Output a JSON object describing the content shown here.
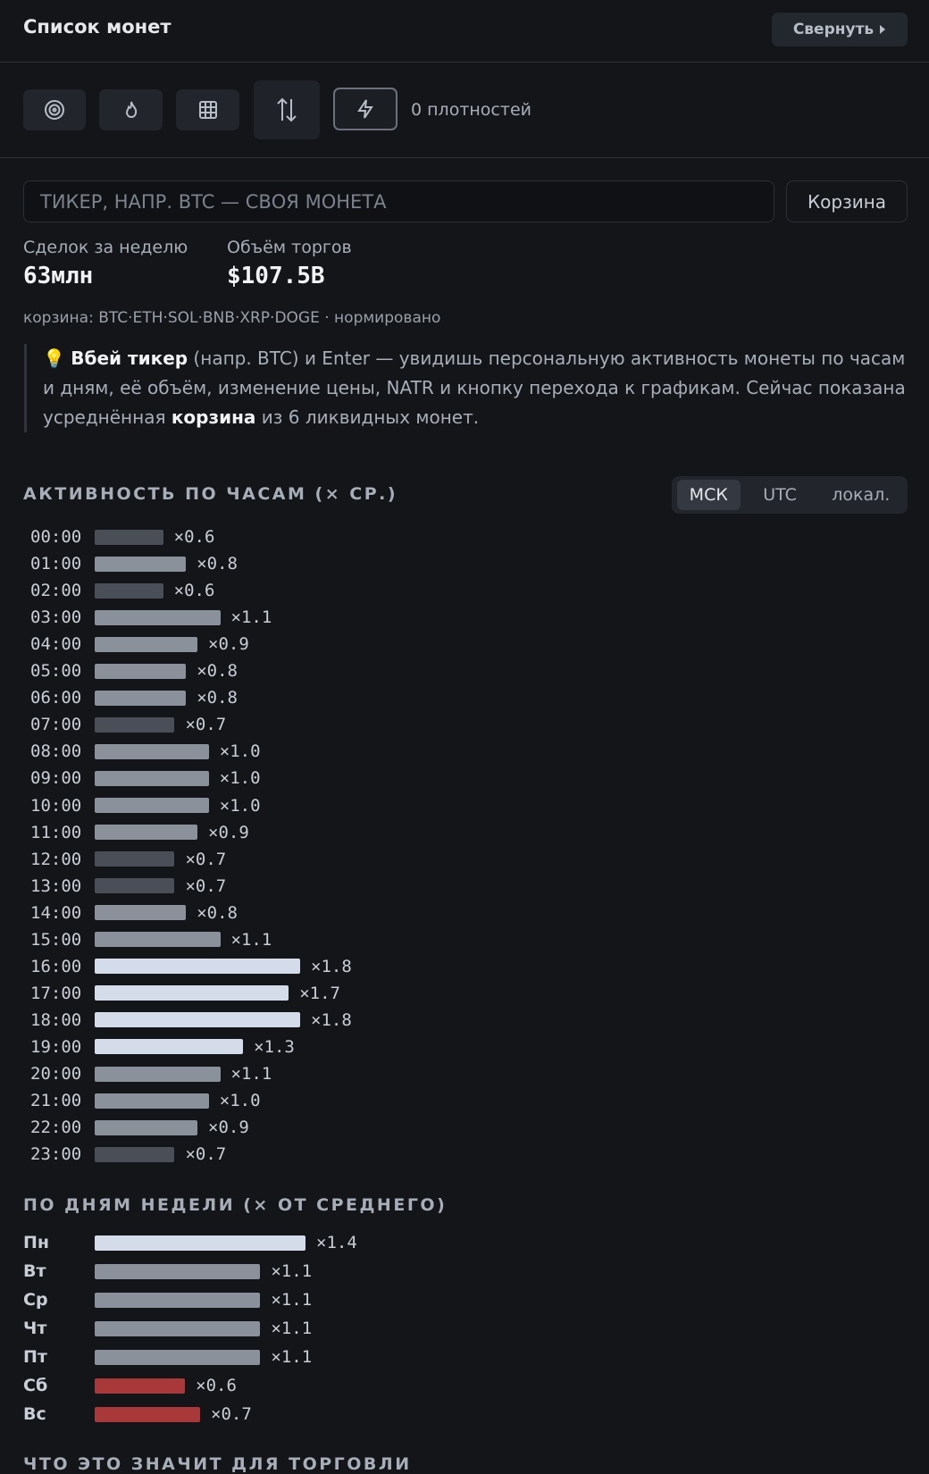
{
  "header": {
    "title": "Список монет",
    "collapse_button": "Свернуть"
  },
  "toolbar": {
    "density_count": "0 плотностей"
  },
  "search": {
    "placeholder": "ТИКЕР, НАПР. BTC — СВОЯ МОНЕТА",
    "basket_button": "Корзина"
  },
  "stats": [
    {
      "label": "Сделок за неделю",
      "value": "63млн"
    },
    {
      "label": "Объём торгов",
      "value": "$107.5B"
    }
  ],
  "basket_info": "корзина: BTC·ETH·SOL·BNB·XRP·DOGE · нормировано",
  "note": {
    "icon": "💡",
    "parts": [
      {
        "text": "Вбей тикер",
        "bold": true
      },
      {
        "text": " (напр. BTC) и Enter — увидишь персональную активность монеты по часам и дням, её объём, изменение цены, NATR и кнопку перехода к графикам. Сейчас показана усреднённая ",
        "bold": false
      },
      {
        "text": "корзина",
        "bold": true
      },
      {
        "text": " из 6 ликвидных монет.",
        "bold": false
      }
    ]
  },
  "hourly": {
    "title": "АКТИВНОСТЬ ПО ЧАСАМ (× СР.)",
    "timezones": [
      "МСК",
      "UTC",
      "локал."
    ],
    "active_timezone": 0,
    "rows": [
      {
        "label": "00:00",
        "value": 0.6,
        "value_label": "×0.6",
        "color": "#4a4f57"
      },
      {
        "label": "01:00",
        "value": 0.8,
        "value_label": "×0.8",
        "color": "#8a919b"
      },
      {
        "label": "02:00",
        "value": 0.6,
        "value_label": "×0.6",
        "color": "#4a4f57"
      },
      {
        "label": "03:00",
        "value": 1.1,
        "value_label": "×1.1",
        "color": "#8a919b"
      },
      {
        "label": "04:00",
        "value": 0.9,
        "value_label": "×0.9",
        "color": "#8a919b"
      },
      {
        "label": "05:00",
        "value": 0.8,
        "value_label": "×0.8",
        "color": "#8a919b"
      },
      {
        "label": "06:00",
        "value": 0.8,
        "value_label": "×0.8",
        "color": "#8a919b"
      },
      {
        "label": "07:00",
        "value": 0.7,
        "value_label": "×0.7",
        "color": "#4a4f57"
      },
      {
        "label": "08:00",
        "value": 1.0,
        "value_label": "×1.0",
        "color": "#8a919b"
      },
      {
        "label": "09:00",
        "value": 1.0,
        "value_label": "×1.0",
        "color": "#8a919b"
      },
      {
        "label": "10:00",
        "value": 1.0,
        "value_label": "×1.0",
        "color": "#8a919b"
      },
      {
        "label": "11:00",
        "value": 0.9,
        "value_label": "×0.9",
        "color": "#8a919b"
      },
      {
        "label": "12:00",
        "value": 0.7,
        "value_label": "×0.7",
        "color": "#4a4f57"
      },
      {
        "label": "13:00",
        "value": 0.7,
        "value_label": "×0.7",
        "color": "#4a4f57"
      },
      {
        "label": "14:00",
        "value": 0.8,
        "value_label": "×0.8",
        "color": "#8a919b"
      },
      {
        "label": "15:00",
        "value": 1.1,
        "value_label": "×1.1",
        "color": "#8a919b"
      },
      {
        "label": "16:00",
        "value": 1.8,
        "value_label": "×1.8",
        "color": "#d4dcea"
      },
      {
        "label": "17:00",
        "value": 1.7,
        "value_label": "×1.7",
        "color": "#d4dcea"
      },
      {
        "label": "18:00",
        "value": 1.8,
        "value_label": "×1.8",
        "color": "#d4dcea"
      },
      {
        "label": "19:00",
        "value": 1.3,
        "value_label": "×1.3",
        "color": "#d4dcea"
      },
      {
        "label": "20:00",
        "value": 1.1,
        "value_label": "×1.1",
        "color": "#8a919b"
      },
      {
        "label": "21:00",
        "value": 1.0,
        "value_label": "×1.0",
        "color": "#8a919b"
      },
      {
        "label": "22:00",
        "value": 0.9,
        "value_label": "×0.9",
        "color": "#8a919b"
      },
      {
        "label": "23:00",
        "value": 0.7,
        "value_label": "×0.7",
        "color": "#4a4f57"
      }
    ]
  },
  "weekly": {
    "title": "ПО ДНЯМ НЕДЕЛИ (× ОТ СРЕДНЕГО)",
    "rows": [
      {
        "label": "Пн",
        "value": 1.4,
        "value_label": "×1.4",
        "color": "#d4dcea"
      },
      {
        "label": "Вт",
        "value": 1.1,
        "value_label": "×1.1",
        "color": "#8a919b"
      },
      {
        "label": "Ср",
        "value": 1.1,
        "value_label": "×1.1",
        "color": "#8a919b"
      },
      {
        "label": "Чт",
        "value": 1.1,
        "value_label": "×1.1",
        "color": "#8a919b"
      },
      {
        "label": "Пт",
        "value": 1.1,
        "value_label": "×1.1",
        "color": "#8a919b"
      },
      {
        "label": "Сб",
        "value": 0.6,
        "value_label": "×0.6",
        "color": "#a8383a"
      },
      {
        "label": "Вс",
        "value": 0.7,
        "value_label": "×0.7",
        "color": "#a8383a"
      }
    ]
  },
  "footer_heading": "ЧТО ЭТО ЗНАЧИТ ДЛЯ ТОРГОВЛИ"
}
